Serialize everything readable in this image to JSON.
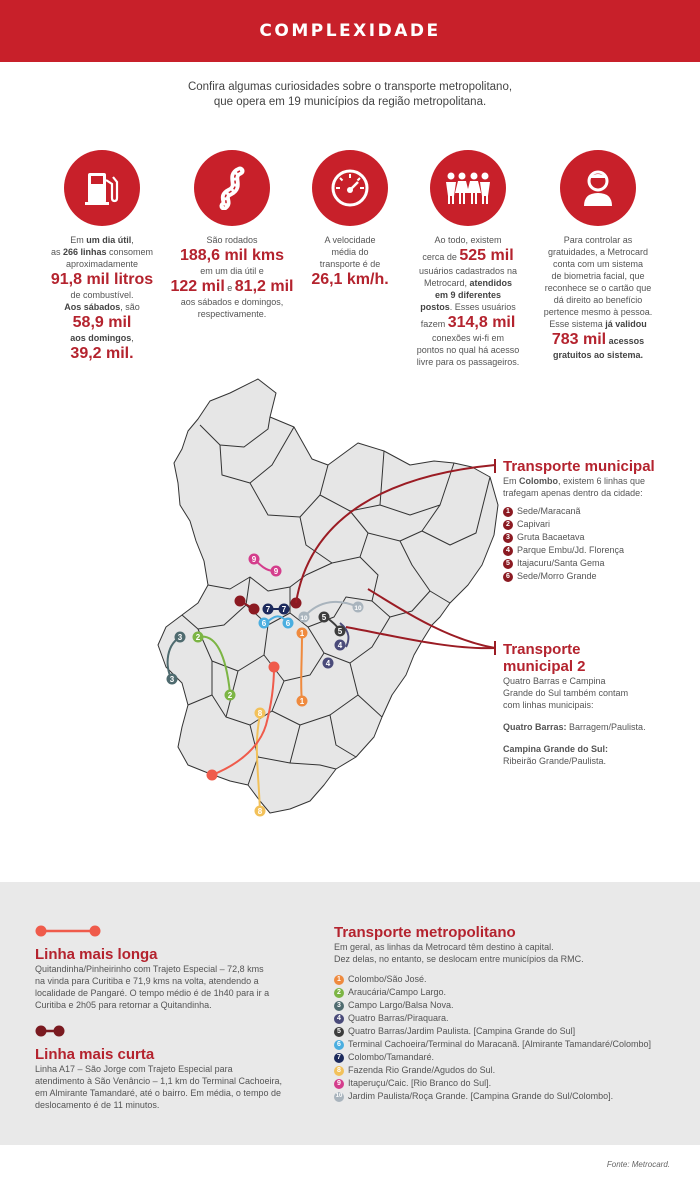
{
  "header": {
    "title": "COMPLEXIDADE"
  },
  "intro": {
    "line1": "Confira algumas curiosidades sobre o transporte metropolitano,",
    "line2": "que opera em 19 municípios da região metropolitana."
  },
  "stats": [
    {
      "icon": "fuel-pump-icon",
      "t1": "Em ",
      "b1": "um dia útil",
      "t2": ",",
      "t3": "as ",
      "b2": "266 linhas",
      "t4": " consomem",
      "t5": "aproximadamente",
      "big1": "91,8 mil litros",
      "t6": "de combustível.",
      "b3": "Aos sábados",
      "t7": ", são",
      "big2": "58,9 mil",
      "b4": "aos domingos",
      "t8": ",",
      "big3": "39,2 mil."
    },
    {
      "icon": "road-icon",
      "t1": "São rodados",
      "big1": "188,6 mil kms",
      "t2": "em um dia útil e",
      "big2": "122 mil",
      "t3": " e ",
      "big3": "81,2 mil",
      "t4": "aos sábados e domingos,",
      "t5": "respectivamente."
    },
    {
      "icon": "speedometer-icon",
      "t1": "A velocidade",
      "t2": "média do",
      "t3": "transporte é de",
      "big1": "26,1 km/h."
    },
    {
      "icon": "people-icon",
      "t1": "Ao todo, existem",
      "t2": "cerca de ",
      "big1": "525 mil",
      "t3": "usuários cadastrados na",
      "t4": "Metrocard, ",
      "b1": "atendidos",
      "b2": "em 9 diferentes",
      "b3": "postos",
      "t5": ". Esses usuários",
      "t6": "fazem ",
      "big2": "314,8 mil",
      "t7": "conexões wi-fi em",
      "t8": "pontos no qual há acesso",
      "t9": "livre para os passageiros."
    },
    {
      "icon": "user-icon",
      "t1": "Para controlar as",
      "t2": "gratuidades, a Metrocard",
      "t3": "conta com um sistema",
      "t4": "de biometria facial, que",
      "t5": "reconhece se o cartão que",
      "t6": "dá direito ao benefício",
      "t7": "pertence mesmo à pessoa.",
      "t8": "Esse sistema ",
      "b1": "já validou",
      "big1": "783 mil",
      "b2": " acessos",
      "b3": "gratuitos ao sistema."
    }
  ],
  "transporte_municipal": {
    "title": "Transporte municipal",
    "text_a": "Em ",
    "text_b": "Colombo",
    "text_c": ", existem 6 linhas que",
    "text_d": "trafegam apenas dentro da cidade:",
    "items": [
      {
        "num": "1",
        "label": "Sede/Maracanã"
      },
      {
        "num": "2",
        "label": "Capivari"
      },
      {
        "num": "3",
        "label": "Gruta Bacaetava"
      },
      {
        "num": "4",
        "label": "Parque Embu/Jd. Florença"
      },
      {
        "num": "5",
        "label": "Itajacuru/Santa Gema"
      },
      {
        "num": "6",
        "label": "Sede/Morro Grande"
      }
    ]
  },
  "transporte_municipal_2": {
    "title1": "Transporte",
    "title2": "municipal 2",
    "text1": "Quatro Barras e Campina",
    "text2": "Grande do Sul também contam",
    "text3": "com linhas municipais:",
    "qb_label": "Quatro Barras:",
    "qb_value": " Barragem/Paulista.",
    "cg_label": "Campina Grande do Sul:",
    "cg_value": "Ribeirão Grande/Paulista."
  },
  "linha_longa": {
    "title": "Linha mais longa",
    "l1": "Quitandinha/Pinheirinho com Trajeto Especial – 72,8 kms",
    "l2": "na vinda para Curitiba e 71,9 kms na volta, atendendo a",
    "l3": "localidade de Pangaré. O tempo médio é de 1h40 para ir a",
    "l4": "Curitiba e 2h05 para retornar a Quitandinha."
  },
  "linha_curta": {
    "title": "Linha mais curta",
    "l1": "Linha A17 – São Jorge com Trajeto Especial para",
    "l2": "atendimento à São Venâncio – 1,1 km do Terminal Cachoeira,",
    "l3": "em Almirante Tamandaré, até o bairro. Em média, o tempo de",
    "l4": "deslocamento é de 11 minutos."
  },
  "transporte_metropolitano": {
    "title": "Transporte metropolitano",
    "l1": "Em geral, as linhas da Metrocard têm destino à capital.",
    "l2": "Dez delas, no entanto, se deslocam entre municípios da RMC.",
    "items": [
      {
        "num": "1",
        "label": "Colombo/São José.",
        "color": "#ef8a3e"
      },
      {
        "num": "2",
        "label": "Araucária/Campo Largo.",
        "color": "#7cb544"
      },
      {
        "num": "3",
        "label": "Campo Largo/Balsa Nova.",
        "color": "#4f6b6f"
      },
      {
        "num": "4",
        "label": "Quatro Barras/Piraquara.",
        "color": "#4a4b7a"
      },
      {
        "num": "5",
        "label": "Quatro Barras/Jardim Paulista. [Campina Grande do Sul]",
        "color": "#3d3d3d"
      },
      {
        "num": "6",
        "label": "Terminal Cachoeira/Terminal do Maracanã. [Almirante Tamandaré/Colombo]",
        "color": "#4aaee0"
      },
      {
        "num": "7",
        "label": "Colombo/Tamandaré.",
        "color": "#1c2a5c"
      },
      {
        "num": "8",
        "label": "Fazenda Rio Grande/Agudos do Sul.",
        "color": "#f2c15a"
      },
      {
        "num": "9",
        "label": "Itaperuçu/Caic. [Rio Branco do Sul].",
        "color": "#d43d8c"
      },
      {
        "num": "10",
        "label": "Jardim Paulista/Roça Grande. [Campina Grande do Sul/Colombo].",
        "color": "#a9b4bd"
      }
    ]
  },
  "colors": {
    "red": "#c8202a",
    "dark_red": "#8b1a22",
    "map_fill": "#e6e6e6",
    "map_stroke": "#333333",
    "bg_gray": "#e9e9e9"
  },
  "source": "Fonte: Metrocard."
}
